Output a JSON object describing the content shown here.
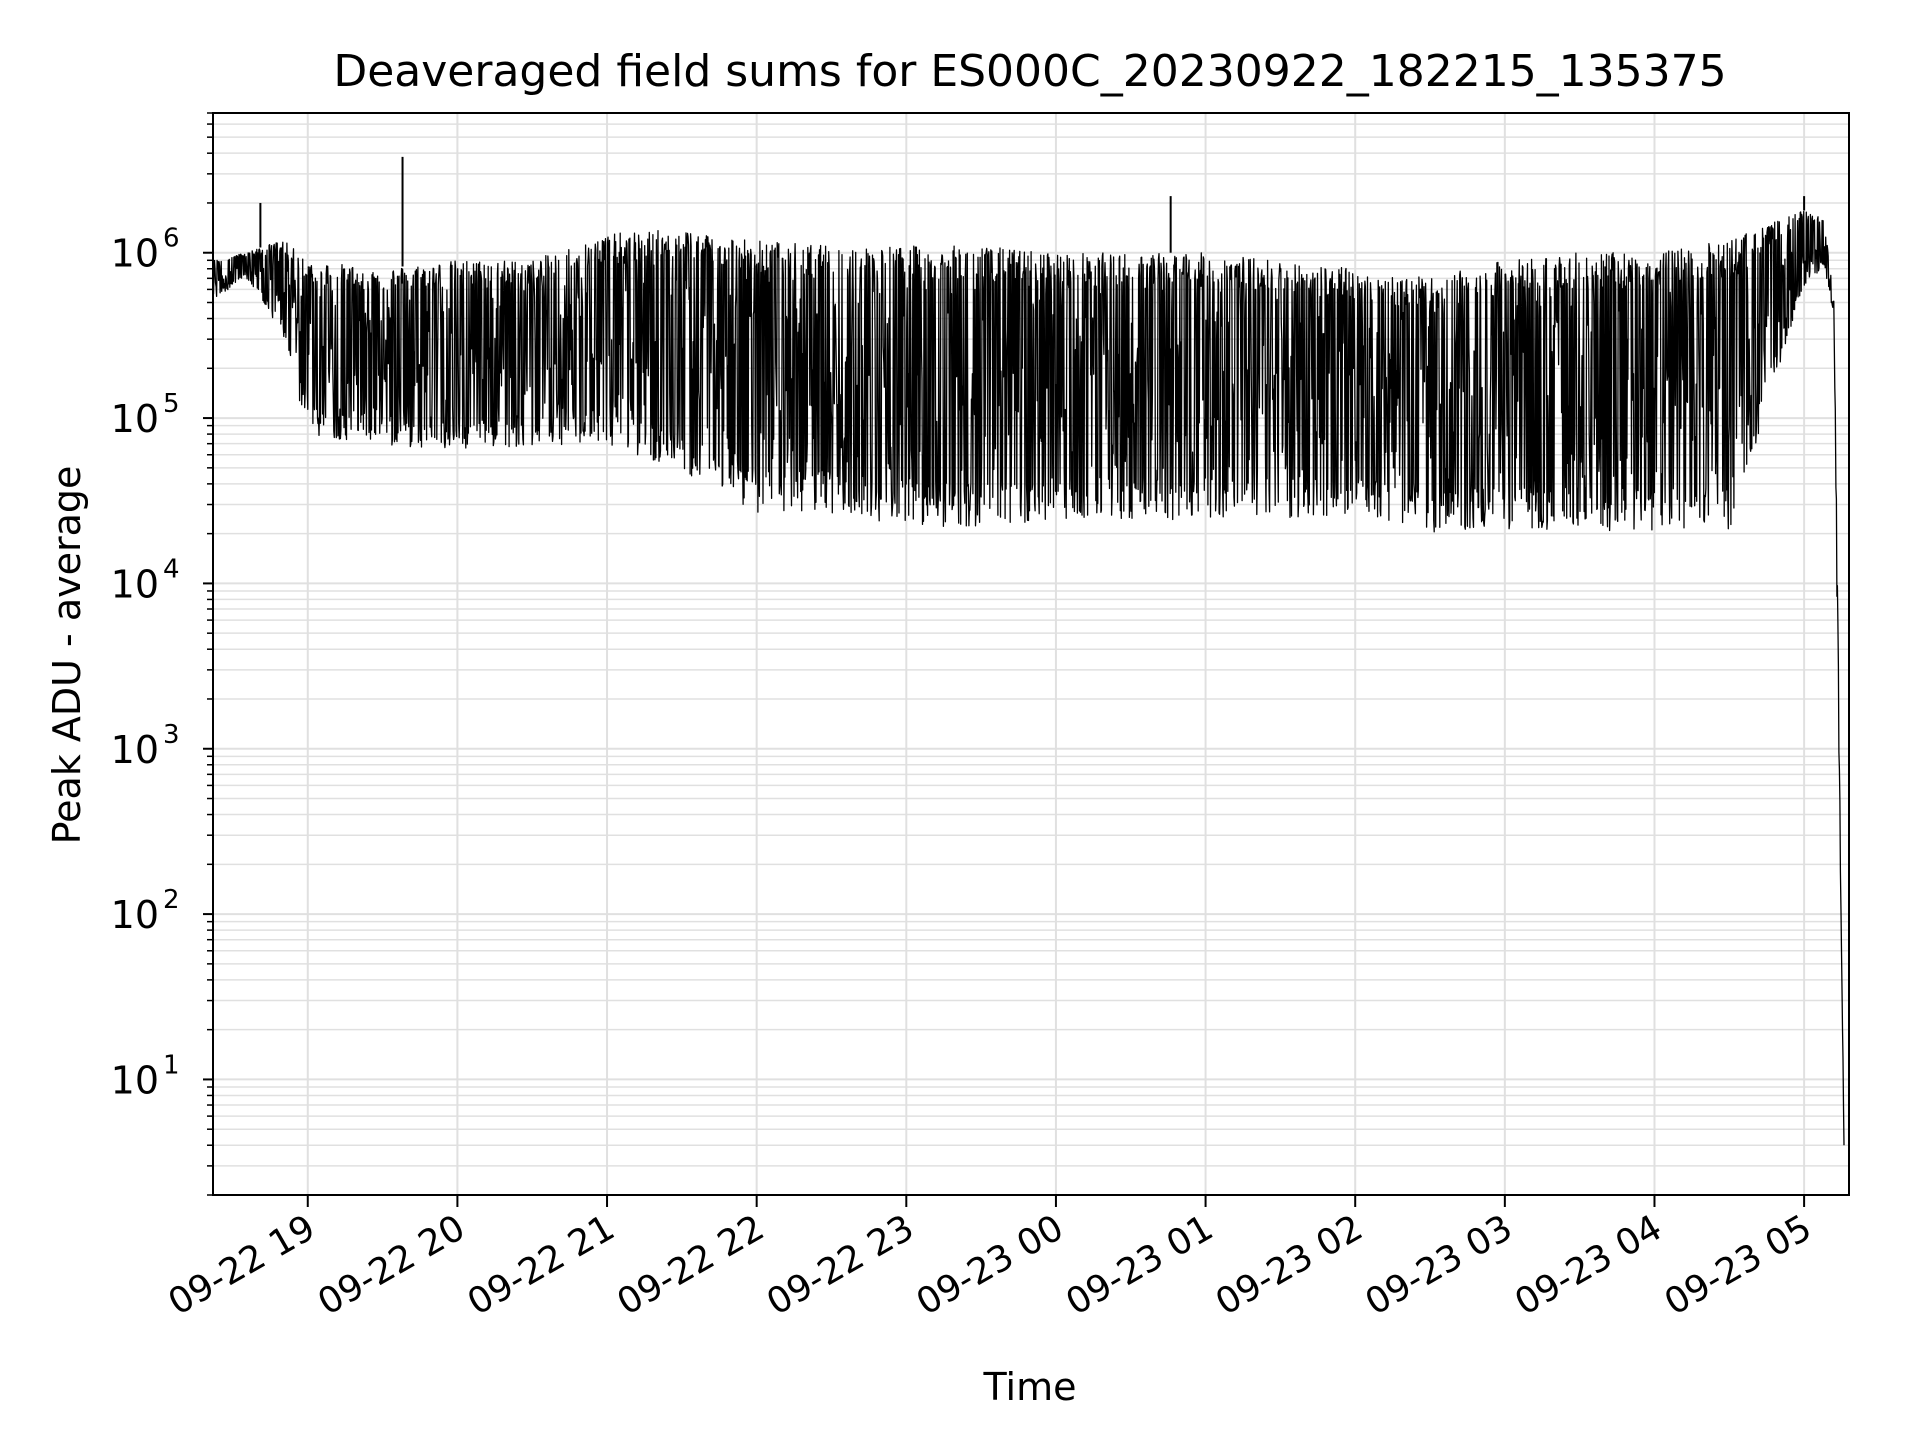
{
  "chart_data": {
    "type": "line",
    "title": "Deaveraged field sums for ES000C_20230922_182215_135375",
    "xlabel": "Time",
    "ylabel": "Peak ADU - average",
    "yscale": "log",
    "ylim": [
      2,
      7000000
    ],
    "xlim": [
      "2023-09-22 18:22",
      "2023-09-23 05:18"
    ],
    "grid": true,
    "line_color": "#000000",
    "grid_color": "#e0e0e0",
    "x_ticks": [
      {
        "value": "2023-09-22 19:00",
        "label": "09-22 19"
      },
      {
        "value": "2023-09-22 20:00",
        "label": "09-22 20"
      },
      {
        "value": "2023-09-22 21:00",
        "label": "09-22 21"
      },
      {
        "value": "2023-09-22 22:00",
        "label": "09-22 22"
      },
      {
        "value": "2023-09-22 23:00",
        "label": "09-22 23"
      },
      {
        "value": "2023-09-23 00:00",
        "label": "09-23 00"
      },
      {
        "value": "2023-09-23 01:00",
        "label": "09-23 01"
      },
      {
        "value": "2023-09-23 02:00",
        "label": "09-23 02"
      },
      {
        "value": "2023-09-23 03:00",
        "label": "09-23 03"
      },
      {
        "value": "2023-09-23 04:00",
        "label": "09-23 04"
      },
      {
        "value": "2023-09-23 05:00",
        "label": "09-23 05"
      }
    ],
    "y_ticks": [
      {
        "value": 10,
        "base": "10",
        "exp": "1"
      },
      {
        "value": 100,
        "base": "10",
        "exp": "2"
      },
      {
        "value": 1000,
        "base": "10",
        "exp": "3"
      },
      {
        "value": 10000,
        "base": "10",
        "exp": "4"
      },
      {
        "value": 100000,
        "base": "10",
        "exp": "5"
      },
      {
        "value": 1000000,
        "base": "10",
        "exp": "6"
      }
    ],
    "series_envelope": {
      "x": [
        "2023-09-22 18:22",
        "2023-09-22 18:35",
        "2023-09-22 18:50",
        "2023-09-22 19:00",
        "2023-09-22 19:30",
        "2023-09-22 20:00",
        "2023-09-22 20:30",
        "2023-09-22 21:00",
        "2023-09-22 21:30",
        "2023-09-22 22:00",
        "2023-09-22 22:30",
        "2023-09-22 23:00",
        "2023-09-22 23:30",
        "2023-09-23 00:00",
        "2023-09-23 00:30",
        "2023-09-23 01:00",
        "2023-09-23 01:30",
        "2023-09-23 02:00",
        "2023-09-23 02:30",
        "2023-09-23 03:00",
        "2023-09-23 03:30",
        "2023-09-23 04:00",
        "2023-09-23 04:30",
        "2023-09-23 05:00",
        "2023-09-23 05:08",
        "2023-09-23 05:12",
        "2023-09-23 05:13",
        "2023-09-23 05:16"
      ],
      "upper": [
        900000,
        1000000,
        1200000,
        900000,
        800000,
        900000,
        900000,
        1300000,
        1400000,
        1200000,
        1100000,
        1100000,
        1100000,
        1000000,
        1000000,
        1000000,
        900000,
        800000,
        700000,
        900000,
        1000000,
        1000000,
        1200000,
        1800000,
        1600000,
        500000,
        30000,
        4
      ],
      "lower": [
        500000,
        700000,
        300000,
        70000,
        60000,
        55000,
        60000,
        60000,
        40000,
        22000,
        22000,
        18000,
        18000,
        20000,
        20000,
        20000,
        20000,
        22000,
        17000,
        17000,
        17000,
        17000,
        17000,
        600000,
        800000,
        400000,
        10000,
        4
      ]
    },
    "spikes": [
      {
        "x": "2023-09-22 18:41",
        "y": 2000000
      },
      {
        "x": "2023-09-22 19:38",
        "y": 3800000
      },
      {
        "x": "2023-09-23 00:46",
        "y": 2200000
      },
      {
        "x": "2023-09-23 05:00",
        "y": 2200000
      }
    ]
  }
}
